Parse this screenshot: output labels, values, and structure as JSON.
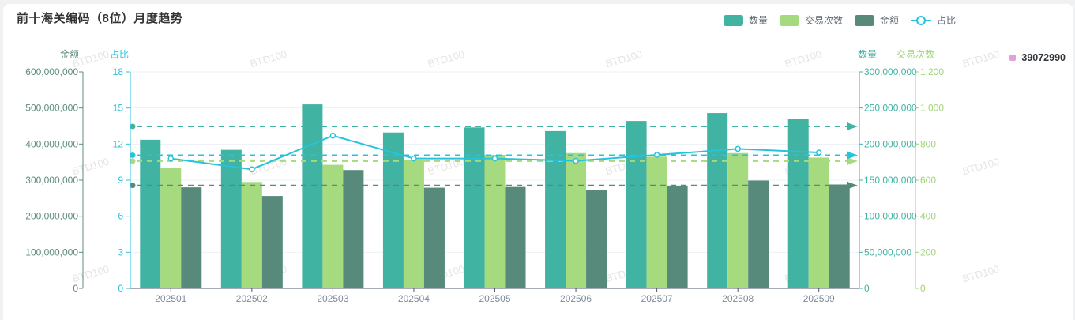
{
  "title": "前十海关编码（8位）月度趋势",
  "legend": {
    "items": [
      {
        "label": "数量",
        "color": "#41B3A3",
        "symbol": "bar"
      },
      {
        "label": "交易次数",
        "color": "#A5DA7E",
        "symbol": "bar"
      },
      {
        "label": "金额",
        "color": "#578A7B",
        "symbol": "bar"
      },
      {
        "label": "占比",
        "color": "#25C3DC",
        "symbol": "line"
      }
    ]
  },
  "side_legend": {
    "label": "39072990",
    "color": "#E2A1D6"
  },
  "watermark": "BTD100",
  "chart_data": {
    "type": "bar",
    "subtype": "grouped-bar + line overlay with dashed average marklines (ECharts style)",
    "title": "前十海关编码（8位）月度趋势",
    "categories": [
      "202501",
      "202502",
      "202503",
      "202504",
      "202505",
      "202506",
      "202507",
      "202508",
      "202509"
    ],
    "series": [
      {
        "name": "数量",
        "slug": "quantity",
        "type": "bar",
        "axis": "quantity",
        "color": "#41B3A3",
        "values": [
          206000000,
          192000000,
          255000000,
          216000000,
          223000000,
          218000000,
          232000000,
          243000000,
          235000000
        ],
        "average_markline": true
      },
      {
        "name": "交易次数",
        "slug": "transactions",
        "type": "bar",
        "axis": "transactions",
        "color": "#A5DA7E",
        "values": [
          670,
          590,
          685,
          710,
          740,
          750,
          730,
          750,
          725
        ],
        "average_markline": true
      },
      {
        "name": "金额",
        "slug": "amount",
        "type": "bar",
        "axis": "amount",
        "color": "#578A7B",
        "values": [
          280000000,
          256000000,
          328000000,
          279000000,
          281000000,
          272000000,
          285000000,
          299000000,
          288000000
        ],
        "average_markline": true
      },
      {
        "name": "占比",
        "slug": "ratio",
        "type": "line",
        "axis": "ratio",
        "color": "#25C3DC",
        "values": [
          10.8,
          9.9,
          12.7,
          10.8,
          10.8,
          10.6,
          11.1,
          11.6,
          11.3
        ],
        "average_markline": true
      }
    ],
    "axes": {
      "amount": {
        "name": "金额",
        "side": "left-outer",
        "color": "#5E8C7D",
        "min": 0,
        "max": 600000000,
        "tick_labels": [
          "0",
          "100,000,000",
          "200,000,000",
          "300,000,000",
          "400,000,000",
          "500,000,000",
          "600,000,000"
        ]
      },
      "ratio": {
        "name": "占比",
        "side": "left-inner",
        "color": "#29C2DC",
        "min": 0,
        "max": 18,
        "tick_labels": [
          "0",
          "3",
          "6",
          "9",
          "12",
          "15",
          "18"
        ]
      },
      "quantity": {
        "name": "数量",
        "side": "right-inner",
        "color": "#41B3A3",
        "min": 0,
        "max": 300000000,
        "tick_labels": [
          "0",
          "50,000,000",
          "100,000,000",
          "150,000,000",
          "200,000,000",
          "250,000,000",
          "300,000,000"
        ]
      },
      "transactions": {
        "name": "交易次数",
        "side": "right-outer",
        "color": "#A0D478",
        "min": 0,
        "max": 1200,
        "tick_labels": [
          "0",
          "200",
          "400",
          "600",
          "800",
          "1,000",
          "1,200"
        ]
      }
    },
    "xlabel": "",
    "grid": true,
    "legend_position": "top-right"
  }
}
